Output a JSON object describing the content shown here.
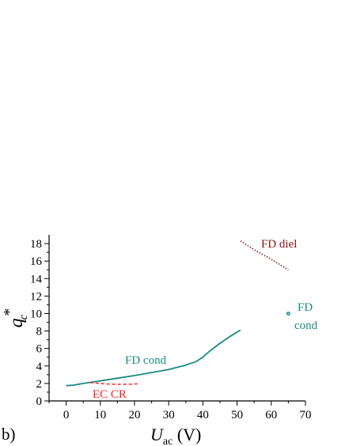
{
  "panel_label": "b)",
  "chart_data": {
    "type": "line",
    "xlabel": {
      "main": "U",
      "sub": "ac",
      "unit": " (V)"
    },
    "ylabel": {
      "main": "q",
      "sup": "*",
      "sub": "c"
    },
    "xlim": [
      -5,
      70
    ],
    "ylim": [
      0,
      19
    ],
    "xticks": [
      0,
      10,
      20,
      30,
      40,
      50,
      60,
      70
    ],
    "yticks": [
      0,
      2,
      4,
      6,
      8,
      10,
      12,
      14,
      16,
      18
    ],
    "grid": false,
    "series": [
      {
        "name": "FD cond",
        "color": "#1a8a82",
        "style": "solid",
        "x": [
          0,
          2,
          5,
          10,
          15,
          20,
          25,
          30,
          35,
          38,
          40,
          42,
          45,
          48,
          51
        ],
        "y": [
          1.75,
          1.8,
          2.0,
          2.3,
          2.6,
          2.9,
          3.25,
          3.6,
          4.1,
          4.5,
          5.0,
          5.7,
          6.6,
          7.4,
          8.1
        ]
      },
      {
        "name": "EC CR",
        "color": "#ff2020",
        "style": "dashed",
        "x": [
          7,
          10,
          13,
          16,
          19,
          21
        ],
        "y": [
          2.1,
          2.0,
          1.92,
          1.9,
          1.92,
          1.95
        ]
      },
      {
        "name": "FD diel",
        "color": "#8b1010",
        "style": "dotted",
        "x": [
          51,
          55,
          60,
          65
        ],
        "y": [
          18.3,
          17.3,
          16.2,
          15.0
        ]
      },
      {
        "name": "FD cond",
        "color": "#1a8a82",
        "style": "point",
        "x": [
          65
        ],
        "y": [
          10
        ]
      }
    ],
    "annotations": [
      {
        "text": "FD diel",
        "color": "#8b1010"
      },
      {
        "text": "FD",
        "color": "#1a8a82"
      },
      {
        "text": "cond",
        "color": "#1a8a82"
      },
      {
        "text": "FD cond",
        "color": "#1a8a82"
      },
      {
        "text": "EC CR",
        "color": "#ff2020"
      }
    ]
  }
}
